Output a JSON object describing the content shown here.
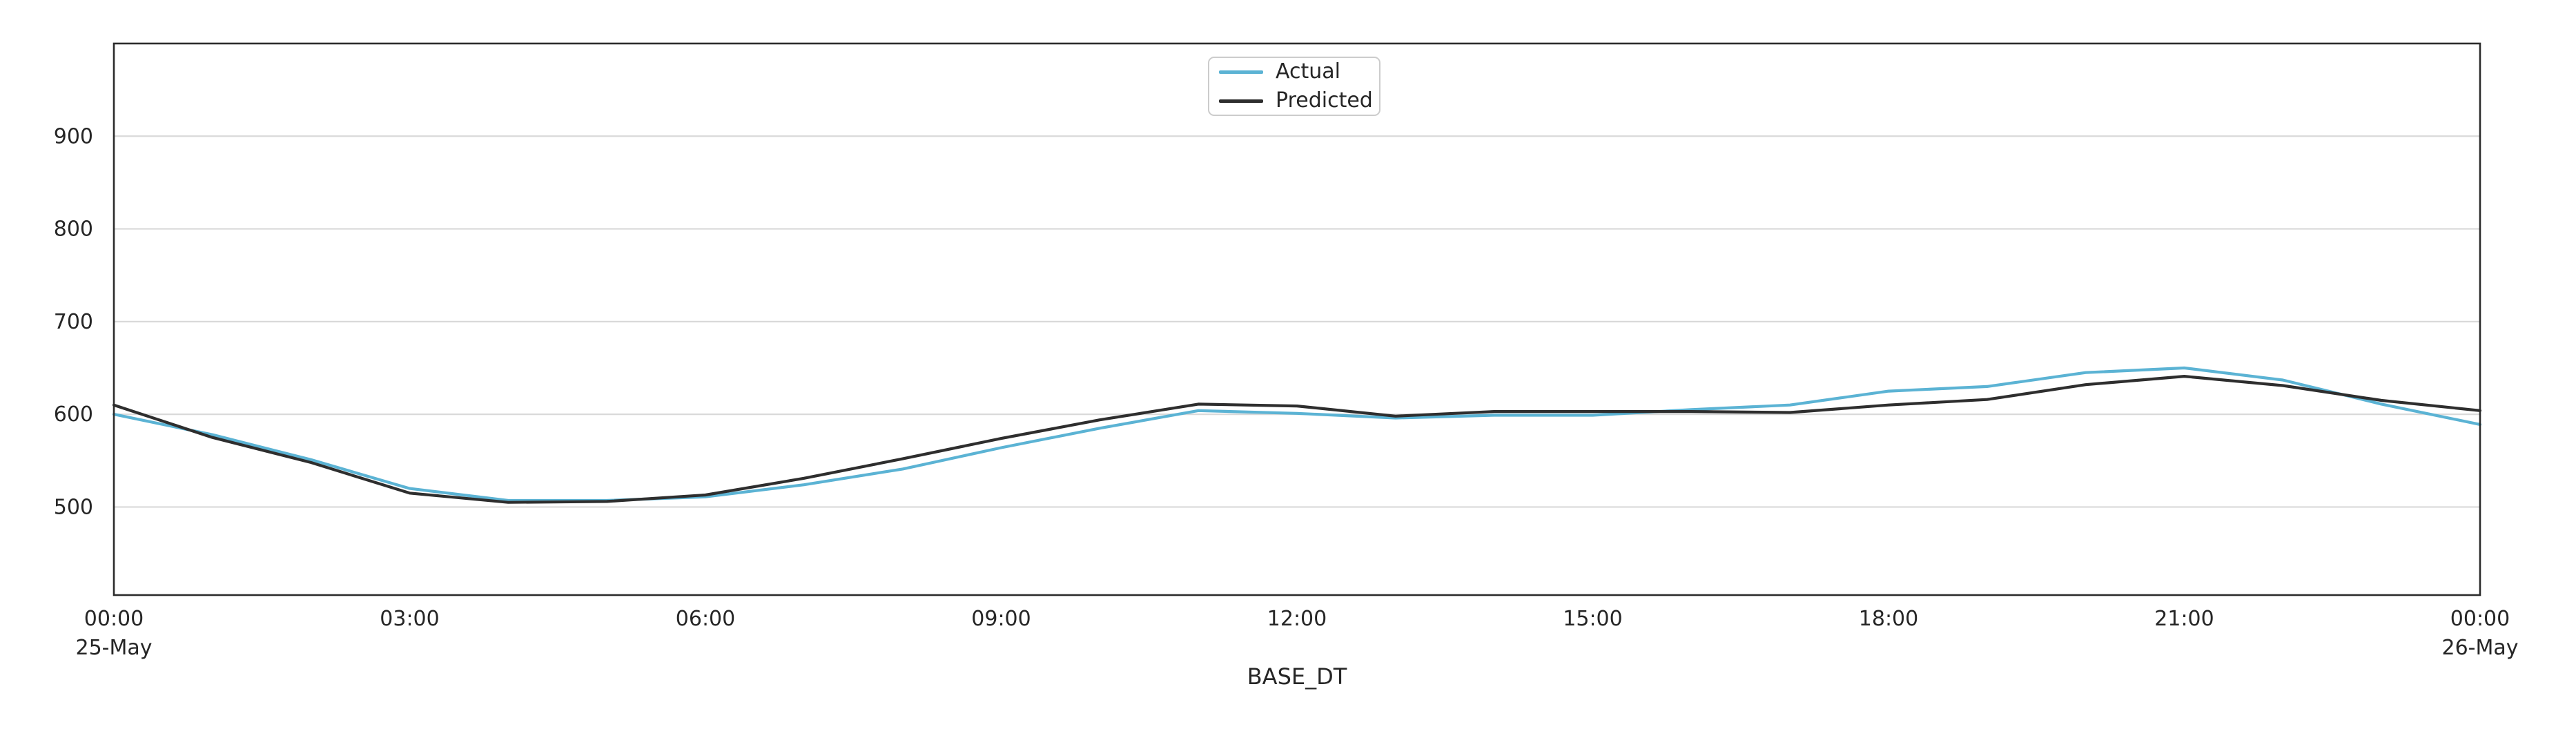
{
  "chart_data": {
    "type": "line",
    "title": "",
    "xlabel": "BASE_DT",
    "ylabel": "",
    "xlim": [
      0,
      24
    ],
    "ylim": [
      405,
      1000
    ],
    "grid": true,
    "legend_position": "upper center",
    "x_hours": [
      0,
      1,
      2,
      3,
      4,
      5,
      6,
      7,
      8,
      9,
      10,
      11,
      12,
      13,
      14,
      15,
      16,
      17,
      18,
      19,
      20,
      21,
      22,
      23,
      24
    ],
    "x_tick_positions": [
      0,
      3,
      6,
      9,
      12,
      15,
      18,
      21,
      24
    ],
    "x_tick_labels": [
      "00:00",
      "03:00",
      "06:00",
      "09:00",
      "12:00",
      "15:00",
      "18:00",
      "21:00",
      "00:00"
    ],
    "x_date_labels": [
      {
        "position": 0,
        "label": "25-May"
      },
      {
        "position": 24,
        "label": "26-May"
      }
    ],
    "y_ticks": [
      500,
      600,
      700,
      800,
      900
    ],
    "series": [
      {
        "name": "Actual",
        "color": "#5BB3D4",
        "values": [
          600,
          578,
          551,
          520,
          507,
          507,
          511,
          524,
          541,
          564,
          585,
          604,
          601,
          596,
          599,
          599,
          605,
          610,
          625,
          630,
          645,
          650,
          637,
          611,
          589
        ]
      },
      {
        "name": "Predicted",
        "color": "#2E2E2E",
        "values": [
          610,
          575,
          548,
          515,
          505,
          506,
          513,
          531,
          552,
          574,
          594,
          611,
          609,
          598,
          603,
          603,
          603,
          602,
          610,
          616,
          632,
          641,
          631,
          615,
          604
        ]
      }
    ]
  },
  "colors": {
    "background": "#FFFFFF",
    "grid": "#D9D9D9",
    "spine": "#2B2B2B",
    "text": "#262626",
    "legend_border": "#CCCCCC"
  }
}
